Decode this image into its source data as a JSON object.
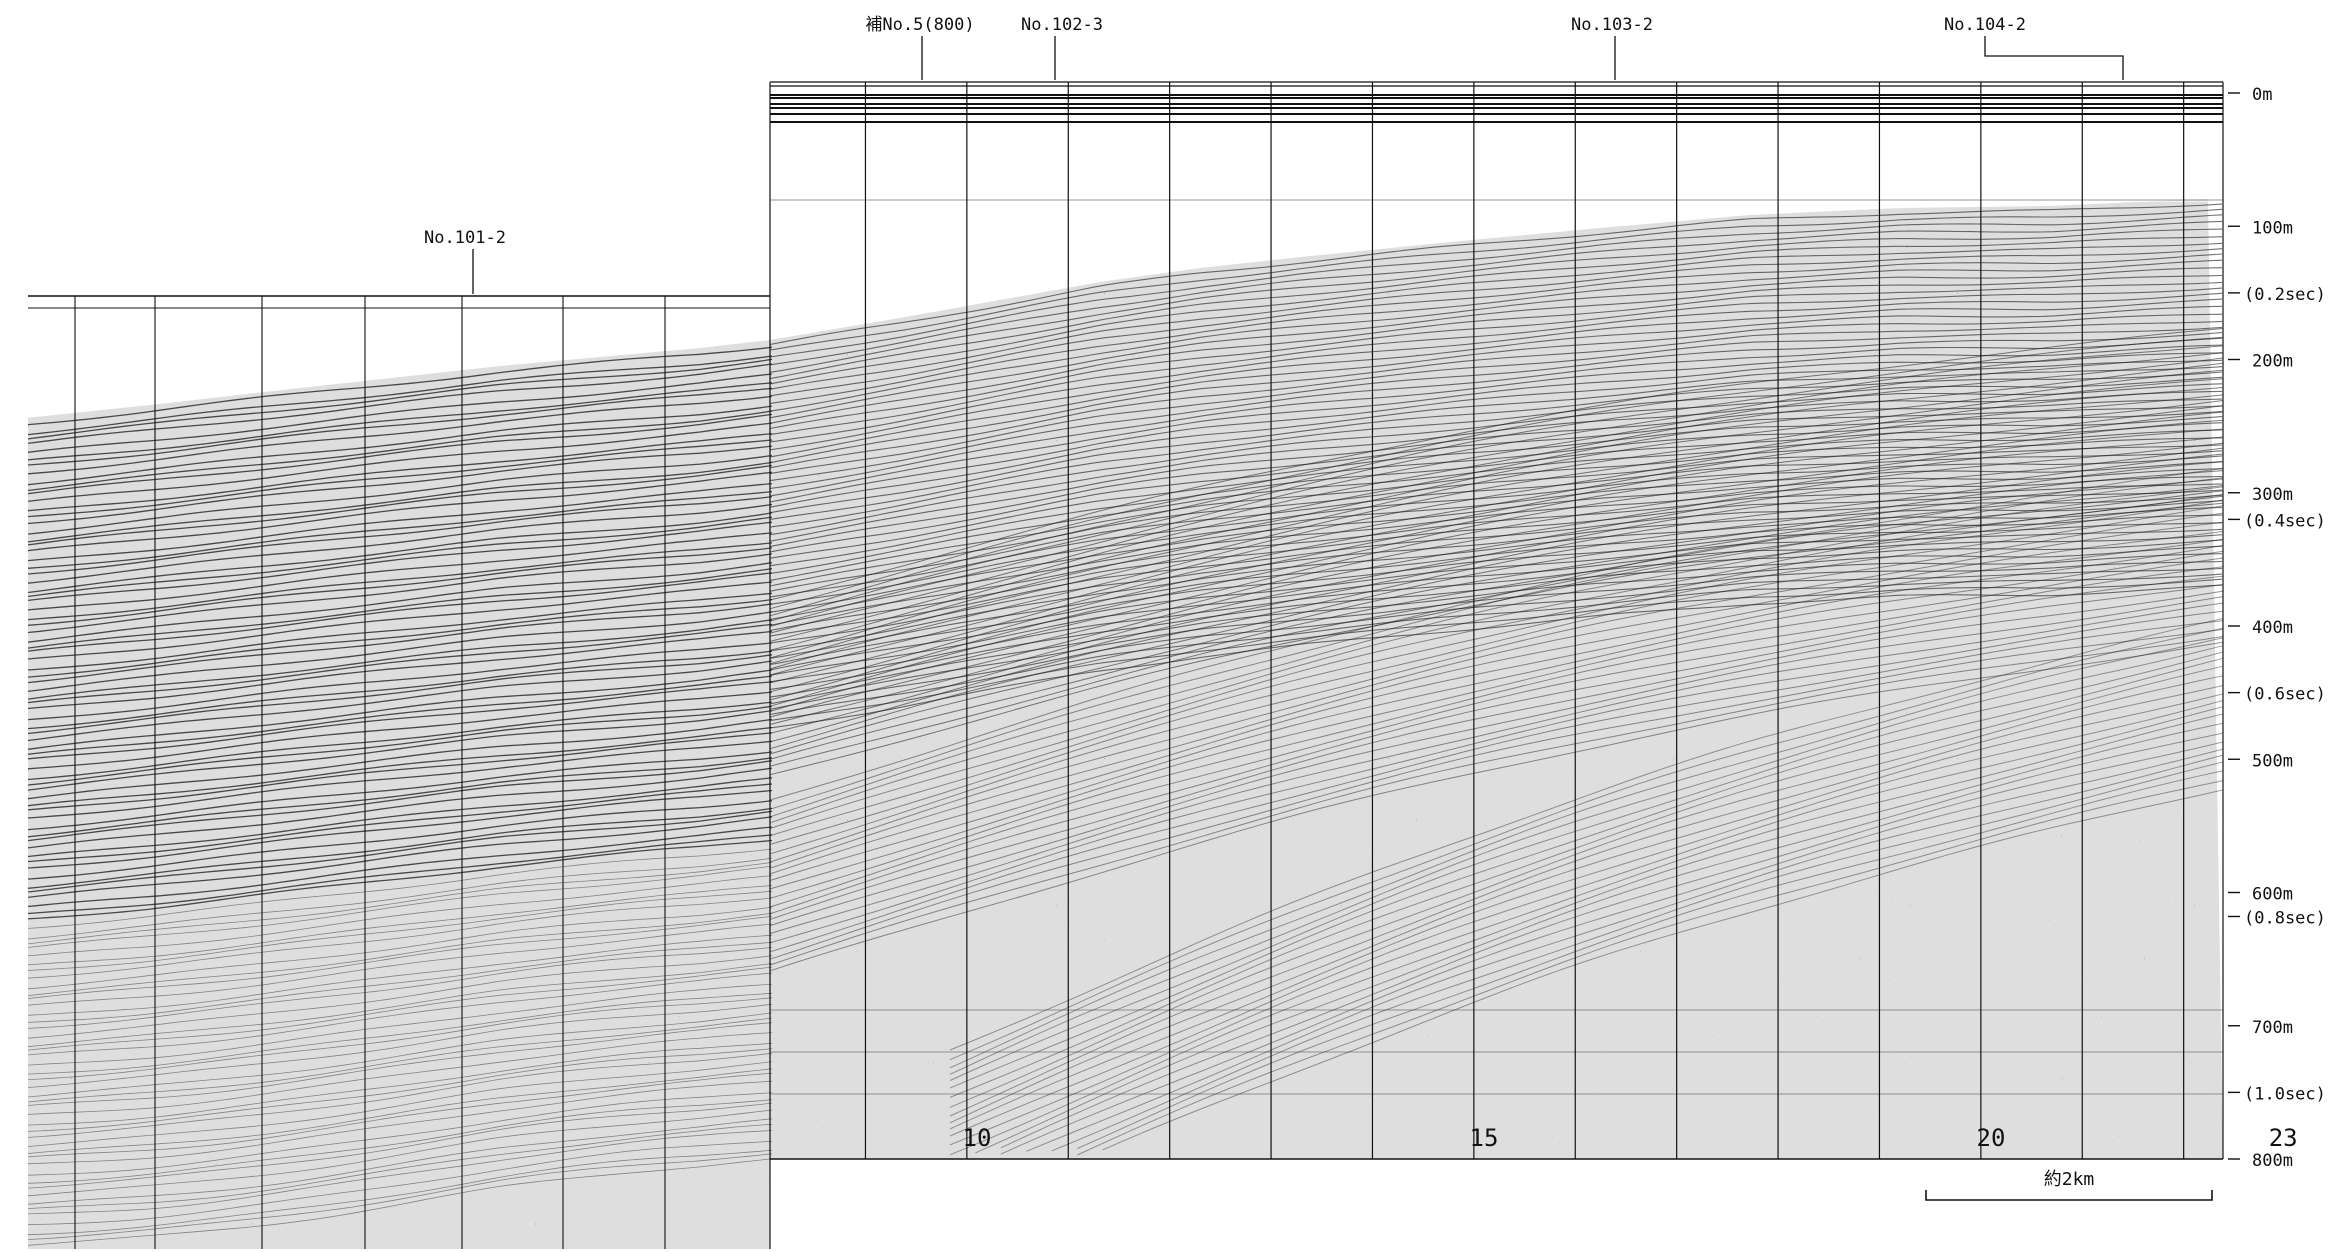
{
  "figure": {
    "well_markers": [
      {
        "label": "補No.5(800)",
        "trace": 9.5
      },
      {
        "label": "No.102-3",
        "trace": 10.8
      },
      {
        "label": "No.103-2",
        "trace": 16.3
      },
      {
        "label": "No.104-2",
        "trace": 21.2
      },
      {
        "label": "No.101-2",
        "trace": 4.3
      }
    ],
    "depth_scale": [
      {
        "label": "0m",
        "depth": 0
      },
      {
        "label": "100m",
        "depth": 100
      },
      {
        "label": "(0.2sec)",
        "depth": 150
      },
      {
        "label": "200m",
        "depth": 200
      },
      {
        "label": "300m",
        "depth": 300
      },
      {
        "label": "(0.4sec)",
        "depth": 320
      },
      {
        "label": "400m",
        "depth": 400
      },
      {
        "label": "(0.6sec)",
        "depth": 450
      },
      {
        "label": "500m",
        "depth": 500
      },
      {
        "label": "600m",
        "depth": 600
      },
      {
        "label": "(0.8sec)",
        "depth": 618
      },
      {
        "label": "700m",
        "depth": 700
      },
      {
        "label": "(1.0sec)",
        "depth": 750
      },
      {
        "label": "800m",
        "depth": 800
      }
    ],
    "x_ticks": [
      "10",
      "15",
      "20",
      "23"
    ],
    "scale_bar_label": "約2km"
  }
}
